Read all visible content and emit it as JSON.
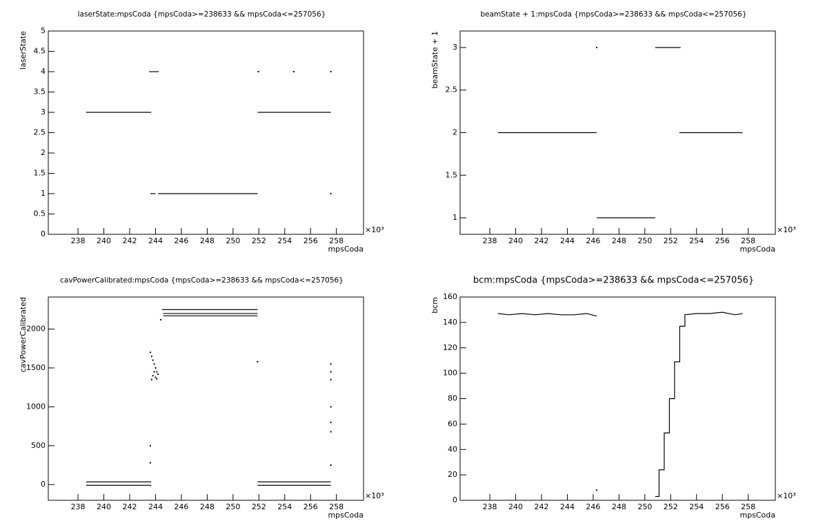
{
  "chart_data": [
    {
      "type": "line",
      "title": "laserState:mpsCoda {mpsCoda>=238633 && mpsCoda<=257056}",
      "x_label": "mpsCoda",
      "y_label": "laserState",
      "x_exponent": "×10³",
      "color": "#000000",
      "xlim": [
        235.7,
        260.1
      ],
      "xticks": [
        238,
        240,
        242,
        244,
        246,
        248,
        250,
        252,
        254,
        256,
        258
      ],
      "ylim": [
        0,
        5
      ],
      "yticks": [
        0,
        0.5,
        1,
        1.5,
        2,
        2.5,
        3,
        3.5,
        4,
        4.5,
        5
      ],
      "series": [
        {
          "type": "line",
          "x": [
            238.63,
            243.67
          ],
          "values": [
            3,
            3
          ]
        },
        {
          "type": "line",
          "x": [
            243.5,
            244.25
          ],
          "values": [
            4,
            4
          ]
        },
        {
          "type": "line",
          "x": [
            243.6,
            244.0
          ],
          "values": [
            1,
            1
          ]
        },
        {
          "type": "line",
          "x": [
            244.2,
            251.9
          ],
          "values": [
            1,
            1
          ]
        },
        {
          "type": "line",
          "x": [
            251.9,
            257.57
          ],
          "values": [
            3,
            3
          ]
        },
        {
          "type": "scatter",
          "x": [
            251.96,
            254.7,
            257.57,
            257.57
          ],
          "values": [
            4,
            4,
            4,
            1
          ]
        }
      ]
    },
    {
      "type": "line",
      "title": "beamState + 1:mpsCoda {mpsCoda>=238633 && mpsCoda<=257056}",
      "x_label": "mpsCoda",
      "y_label": "beamState + 1",
      "x_exponent": "×10³",
      "color": "#000000",
      "xlim": [
        235.7,
        260.1
      ],
      "xticks": [
        238,
        240,
        242,
        244,
        246,
        248,
        250,
        252,
        254,
        256,
        258
      ],
      "ylim": [
        0.806,
        3.194
      ],
      "yticks": [
        1,
        1.5,
        2,
        2.5,
        3
      ],
      "series": [
        {
          "type": "line",
          "x": [
            238.63,
            246.27
          ],
          "values": [
            2,
            2
          ]
        },
        {
          "type": "scatter",
          "x": [
            246.27
          ],
          "values": [
            3
          ]
        },
        {
          "type": "line",
          "x": [
            246.27,
            250.8
          ],
          "values": [
            1,
            1
          ]
        },
        {
          "type": "line",
          "x": [
            250.8,
            252.77
          ],
          "values": [
            3,
            3
          ]
        },
        {
          "type": "line",
          "x": [
            252.67,
            257.57
          ],
          "values": [
            2,
            2
          ]
        }
      ]
    },
    {
      "type": "line",
      "title": "cavPowerCalibrated:mpsCoda {mpsCoda>=238633 && mpsCoda<=257056}",
      "x_label": "mpsCoda",
      "y_label": "cavPowerCalibrated",
      "x_exponent": "×10³",
      "color": "#000000",
      "xlim": [
        235.7,
        260.1
      ],
      "xticks": [
        238,
        240,
        242,
        244,
        246,
        248,
        250,
        252,
        254,
        256,
        258
      ],
      "ylim": [
        -202,
        2412
      ],
      "yticks": [
        0,
        500,
        1000,
        1500,
        2000
      ],
      "series": [
        {
          "type": "line",
          "x": [
            238.63,
            243.67
          ],
          "values": [
            35,
            35
          ]
        },
        {
          "type": "line",
          "x": [
            238.63,
            243.67
          ],
          "values": [
            -9,
            -9
          ]
        },
        {
          "type": "line",
          "x": [
            244.5,
            251.9
          ],
          "values": [
            2250,
            2250
          ]
        },
        {
          "type": "line",
          "x": [
            244.6,
            251.9
          ],
          "values": [
            2200,
            2200
          ]
        },
        {
          "type": "line",
          "x": [
            244.6,
            251.9
          ],
          "values": [
            2170,
            2170
          ]
        },
        {
          "type": "line",
          "x": [
            251.9,
            257.57
          ],
          "values": [
            35,
            35
          ]
        },
        {
          "type": "line",
          "x": [
            251.9,
            257.57
          ],
          "values": [
            -9,
            -9
          ]
        },
        {
          "type": "scatter",
          "x": [
            243.6,
            243.7,
            243.8,
            243.9,
            244.0,
            244.1,
            244.2,
            243.7,
            243.8,
            243.9,
            244.0,
            244.1,
            243.6,
            243.6,
            244.4,
            251.9,
            257.57,
            257.57,
            257.57,
            257.57,
            257.57,
            257.57,
            257.57
          ],
          "values": [
            1700,
            1650,
            1600,
            1550,
            1500,
            1450,
            1420,
            1350,
            1400,
            1450,
            1380,
            1360,
            500,
            280,
            2120,
            1580,
            1550,
            1450,
            1350,
            1000,
            800,
            680,
            250
          ]
        }
      ]
    },
    {
      "type": "line",
      "title": "bcm:mpsCoda {mpsCoda>=238633 && mpsCoda<=257056}",
      "x_label": "mpsCoda",
      "y_label": "bcm",
      "x_exponent": "×10³",
      "color": "#000000",
      "xlim": [
        235.7,
        260.1
      ],
      "xticks": [
        238,
        240,
        242,
        244,
        246,
        248,
        250,
        252,
        254,
        256,
        258
      ],
      "ylim": [
        0,
        160
      ],
      "yticks": [
        0,
        20,
        40,
        60,
        80,
        100,
        120,
        140,
        160
      ],
      "series": [
        {
          "type": "line",
          "x": [
            238.63,
            239.5,
            240.5,
            241.5,
            242.5,
            243.5,
            244.5,
            245.5,
            246.27
          ],
          "values": [
            147,
            146,
            147,
            146,
            147,
            146,
            146,
            147,
            145
          ]
        },
        {
          "type": "line",
          "x": [
            250.8,
            251.1,
            251.1,
            251.5,
            251.5,
            251.9,
            251.9,
            252.3,
            252.3,
            252.7,
            252.7,
            253.1,
            253.1,
            254.0,
            255.0,
            256.0,
            257.0,
            257.57
          ],
          "values": [
            3,
            3,
            24,
            24,
            53,
            53,
            80,
            80,
            109,
            109,
            137,
            137,
            146,
            147,
            147,
            148,
            146,
            147
          ]
        },
        {
          "type": "scatter",
          "x": [
            246.27
          ],
          "values": [
            8
          ]
        }
      ]
    }
  ]
}
